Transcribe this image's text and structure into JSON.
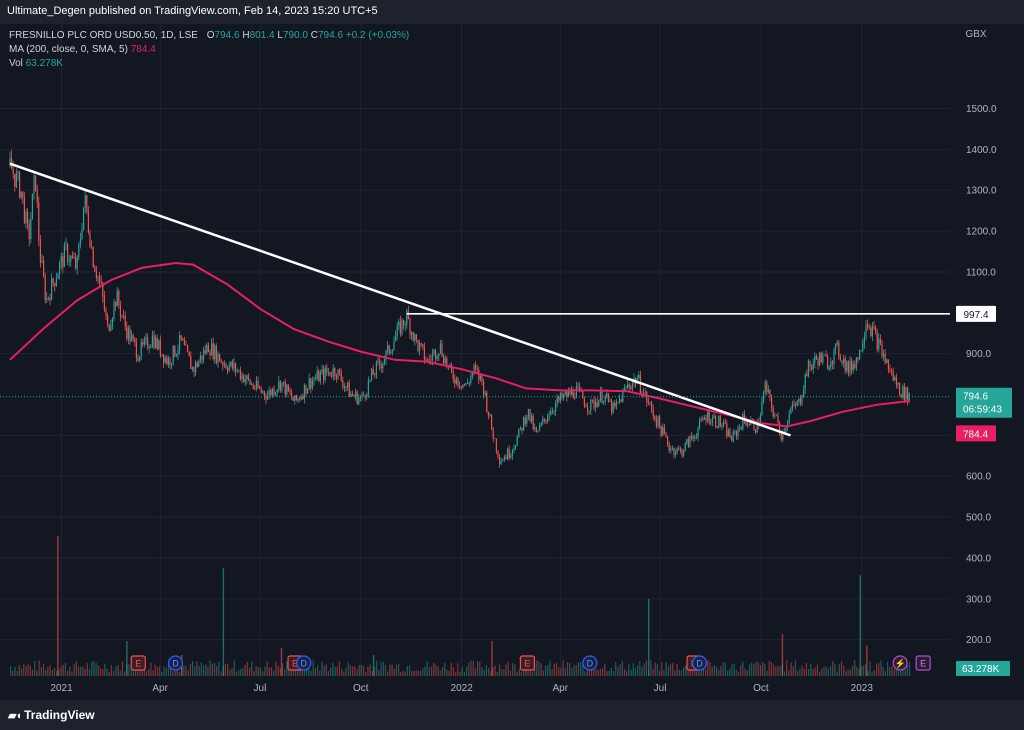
{
  "header": {
    "publisher": "Ultimate_Degen published on TradingView.com, Feb 14, 2023 15:20 UTC+5"
  },
  "legend": {
    "symbol": "FRESNILLO PLC ORD USD0.50, 1D, LSE",
    "o_label": "O",
    "o_value": "794.6",
    "h_label": "H",
    "h_value": "801.4",
    "l_label": "L",
    "l_value": "790.0",
    "c_label": "C",
    "c_value": "794.6",
    "change": "+0.2 (+0.03%)",
    "ma_label": "MA (200, close, 0, SMA, 5)",
    "ma_value": "784.4",
    "vol_label": "Vol",
    "vol_value": "63.278K"
  },
  "footer": {
    "brand": "TradingView"
  },
  "chart_data": {
    "type": "candlestick",
    "currency": "GBX",
    "price_axis_ticks": [
      "1500.0",
      "1400.0",
      "1300.0",
      "1200.0",
      "1100.0",
      "900.0",
      "700.0",
      "600.0",
      "500.0",
      "400.0",
      "300.0",
      "200.0"
    ],
    "time_axis_ticks": [
      "2021",
      "Apr",
      "Jul",
      "Oct",
      "2022",
      "Apr",
      "Jul",
      "Oct",
      "2023"
    ],
    "ylim": [
      160,
      1560
    ],
    "price_label": {
      "value": "794.6",
      "countdown": "06:59:43"
    },
    "ma_label": "784.4",
    "level_label": "997.4",
    "volume_label": "63.278K",
    "colors": {
      "up": "#26a69a",
      "down": "#ef5350",
      "ma": "#e91e63",
      "trend": "#ffffff",
      "background": "#131722"
    },
    "price_path": [
      {
        "t": "2020-11-15",
        "p": 1360
      },
      {
        "t": "2020-11-25",
        "p": 1300
      },
      {
        "t": "2020-12-02",
        "p": 1180
      },
      {
        "t": "2020-12-08",
        "p": 1340
      },
      {
        "t": "2020-12-12",
        "p": 1150
      },
      {
        "t": "2020-12-18",
        "p": 1030
      },
      {
        "t": "2020-12-28",
        "p": 1100
      },
      {
        "t": "2021-01-05",
        "p": 1150
      },
      {
        "t": "2021-01-15",
        "p": 1110
      },
      {
        "t": "2021-01-22",
        "p": 1280
      },
      {
        "t": "2021-01-30",
        "p": 1130
      },
      {
        "t": "2021-02-06",
        "p": 1060
      },
      {
        "t": "2021-02-12",
        "p": 960
      },
      {
        "t": "2021-02-20",
        "p": 1040
      },
      {
        "t": "2021-03-01",
        "p": 960
      },
      {
        "t": "2021-03-12",
        "p": 900
      },
      {
        "t": "2021-03-25",
        "p": 940
      },
      {
        "t": "2021-04-08",
        "p": 880
      },
      {
        "t": "2021-04-20",
        "p": 930
      },
      {
        "t": "2021-05-01",
        "p": 860
      },
      {
        "t": "2021-05-15",
        "p": 920
      },
      {
        "t": "2021-05-28",
        "p": 880
      },
      {
        "t": "2021-06-10",
        "p": 860
      },
      {
        "t": "2021-06-25",
        "p": 820
      },
      {
        "t": "2021-07-08",
        "p": 800
      },
      {
        "t": "2021-07-20",
        "p": 830
      },
      {
        "t": "2021-08-02",
        "p": 780
      },
      {
        "t": "2021-08-15",
        "p": 830
      },
      {
        "t": "2021-08-28",
        "p": 850
      },
      {
        "t": "2021-09-08",
        "p": 860
      },
      {
        "t": "2021-09-22",
        "p": 800
      },
      {
        "t": "2021-10-02",
        "p": 790
      },
      {
        "t": "2021-10-12",
        "p": 850
      },
      {
        "t": "2021-10-25",
        "p": 900
      },
      {
        "t": "2021-11-05",
        "p": 960
      },
      {
        "t": "2021-11-12",
        "p": 990
      },
      {
        "t": "2021-11-20",
        "p": 930
      },
      {
        "t": "2021-12-01",
        "p": 880
      },
      {
        "t": "2021-12-12",
        "p": 920
      },
      {
        "t": "2021-12-22",
        "p": 850
      },
      {
        "t": "2022-01-05",
        "p": 820
      },
      {
        "t": "2022-01-12",
        "p": 860
      },
      {
        "t": "2022-01-20",
        "p": 830
      },
      {
        "t": "2022-01-28",
        "p": 720
      },
      {
        "t": "2022-02-05",
        "p": 640
      },
      {
        "t": "2022-02-14",
        "p": 660
      },
      {
        "t": "2022-02-22",
        "p": 700
      },
      {
        "t": "2022-03-02",
        "p": 760
      },
      {
        "t": "2022-03-10",
        "p": 700
      },
      {
        "t": "2022-03-22",
        "p": 760
      },
      {
        "t": "2022-04-02",
        "p": 790
      },
      {
        "t": "2022-04-15",
        "p": 810
      },
      {
        "t": "2022-04-28",
        "p": 770
      },
      {
        "t": "2022-05-10",
        "p": 800
      },
      {
        "t": "2022-05-20",
        "p": 760
      },
      {
        "t": "2022-06-01",
        "p": 820
      },
      {
        "t": "2022-06-10",
        "p": 840
      },
      {
        "t": "2022-06-20",
        "p": 780
      },
      {
        "t": "2022-07-01",
        "p": 720
      },
      {
        "t": "2022-07-10",
        "p": 670
      },
      {
        "t": "2022-07-20",
        "p": 660
      },
      {
        "t": "2022-08-01",
        "p": 700
      },
      {
        "t": "2022-08-12",
        "p": 750
      },
      {
        "t": "2022-08-25",
        "p": 730
      },
      {
        "t": "2022-09-05",
        "p": 690
      },
      {
        "t": "2022-09-15",
        "p": 740
      },
      {
        "t": "2022-09-28",
        "p": 720
      },
      {
        "t": "2022-10-05",
        "p": 820
      },
      {
        "t": "2022-10-12",
        "p": 760
      },
      {
        "t": "2022-10-20",
        "p": 700
      },
      {
        "t": "2022-10-28",
        "p": 760
      },
      {
        "t": "2022-11-05",
        "p": 780
      },
      {
        "t": "2022-11-12",
        "p": 860
      },
      {
        "t": "2022-11-22",
        "p": 890
      },
      {
        "t": "2022-12-01",
        "p": 880
      },
      {
        "t": "2022-12-10",
        "p": 910
      },
      {
        "t": "2022-12-20",
        "p": 860
      },
      {
        "t": "2022-12-30",
        "p": 900
      },
      {
        "t": "2023-01-05",
        "p": 985
      },
      {
        "t": "2023-01-12",
        "p": 950
      },
      {
        "t": "2023-01-20",
        "p": 900
      },
      {
        "t": "2023-01-28",
        "p": 850
      },
      {
        "t": "2023-02-05",
        "p": 810
      },
      {
        "t": "2023-02-14",
        "p": 794.6
      }
    ],
    "ma200_path": [
      {
        "t": "2020-11-15",
        "p": 885
      },
      {
        "t": "2020-12-15",
        "p": 960
      },
      {
        "t": "2021-01-15",
        "p": 1030
      },
      {
        "t": "2021-02-15",
        "p": 1080
      },
      {
        "t": "2021-03-15",
        "p": 1110
      },
      {
        "t": "2021-04-15",
        "p": 1122
      },
      {
        "t": "2021-05-01",
        "p": 1118
      },
      {
        "t": "2021-06-01",
        "p": 1070
      },
      {
        "t": "2021-07-01",
        "p": 1010
      },
      {
        "t": "2021-08-01",
        "p": 960
      },
      {
        "t": "2021-09-01",
        "p": 930
      },
      {
        "t": "2021-10-01",
        "p": 905
      },
      {
        "t": "2021-11-01",
        "p": 885
      },
      {
        "t": "2021-12-01",
        "p": 880
      },
      {
        "t": "2022-01-01",
        "p": 862
      },
      {
        "t": "2022-02-01",
        "p": 840
      },
      {
        "t": "2022-03-01",
        "p": 815
      },
      {
        "t": "2022-04-01",
        "p": 810
      },
      {
        "t": "2022-05-01",
        "p": 810
      },
      {
        "t": "2022-06-01",
        "p": 808
      },
      {
        "t": "2022-07-01",
        "p": 790
      },
      {
        "t": "2022-08-01",
        "p": 770
      },
      {
        "t": "2022-09-01",
        "p": 750
      },
      {
        "t": "2022-10-01",
        "p": 730
      },
      {
        "t": "2022-10-25",
        "p": 722
      },
      {
        "t": "2022-11-15",
        "p": 735
      },
      {
        "t": "2022-12-15",
        "p": 758
      },
      {
        "t": "2023-01-15",
        "p": 775
      },
      {
        "t": "2023-02-14",
        "p": 784.4
      }
    ],
    "volume_bars": [
      {
        "t": "2020-12-28",
        "v": 1
      },
      {
        "t": "2021-03-01",
        "v": 0.25
      },
      {
        "t": "2021-04-20",
        "v": 0.15
      },
      {
        "t": "2021-05-28",
        "v": 0.77
      },
      {
        "t": "2021-07-20",
        "v": 0.2
      },
      {
        "t": "2021-10-12",
        "v": 0.15
      },
      {
        "t": "2022-01-28",
        "v": 0.25
      },
      {
        "t": "2022-06-20",
        "v": 0.55
      },
      {
        "t": "2022-10-20",
        "v": 0.3
      },
      {
        "t": "2022-12-30",
        "v": 0.72
      },
      {
        "t": "2023-01-05",
        "v": 0.22
      }
    ],
    "trendline": {
      "from": {
        "t": "2020-11-15",
        "p": 1365
      },
      "to": {
        "t": "2022-10-28",
        "p": 700
      }
    },
    "level_line": {
      "from": {
        "t": "2021-11-12",
        "p": 997.4
      },
      "price": 997.4
    },
    "events": [
      {
        "t": "2021-03-12",
        "label": "E",
        "kind": "earnings"
      },
      {
        "t": "2021-04-15",
        "label": "D",
        "kind": "dividend"
      },
      {
        "t": "2021-08-02",
        "label": "E",
        "kind": "earnings"
      },
      {
        "t": "2021-08-10",
        "label": "D",
        "kind": "dividend"
      },
      {
        "t": "2022-03-02",
        "label": "E",
        "kind": "earnings"
      },
      {
        "t": "2022-04-28",
        "label": "D",
        "kind": "dividend"
      },
      {
        "t": "2022-08-01",
        "label": "E",
        "kind": "earnings"
      },
      {
        "t": "2022-08-06",
        "label": "D",
        "kind": "dividend"
      },
      {
        "t": "2023-02-05",
        "label": "⚡",
        "kind": "flash"
      },
      {
        "t": "2023-02-26",
        "label": "E",
        "kind": "future-earnings"
      }
    ]
  }
}
